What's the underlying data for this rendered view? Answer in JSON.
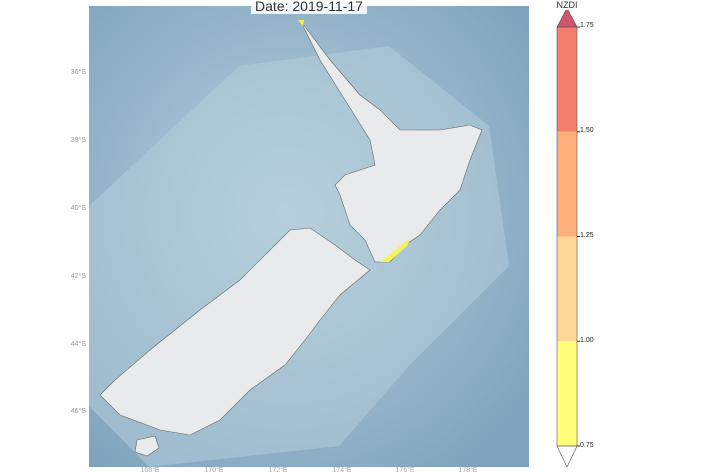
{
  "title": "Date: 2019-11-17",
  "map": {
    "ocean_color": "#9bb8cc",
    "land_color": "#e8eaeb",
    "highlight_color": "#f6f25a",
    "lat_labels": [
      "36°S",
      "38°S",
      "40°S",
      "42°S",
      "44°S",
      "46°S"
    ],
    "lon_labels": [
      "168°E",
      "170°E",
      "172°E",
      "174°E",
      "176°E",
      "178°E"
    ]
  },
  "colorbar": {
    "label": "NZDI",
    "ticks": [
      "0.75",
      "1.00",
      "1.25",
      "1.50",
      "1.75"
    ],
    "bins": [
      {
        "from": 0.75,
        "to": 1.0,
        "color": "#ffff78"
      },
      {
        "from": 1.0,
        "to": 1.25,
        "color": "#fed898"
      },
      {
        "from": 1.25,
        "to": 1.5,
        "color": "#fdb07a"
      },
      {
        "from": 1.5,
        "to": 1.75,
        "color": "#f47f6f"
      }
    ],
    "over_color": "#d0546c",
    "under_color": "#ffffff"
  }
}
